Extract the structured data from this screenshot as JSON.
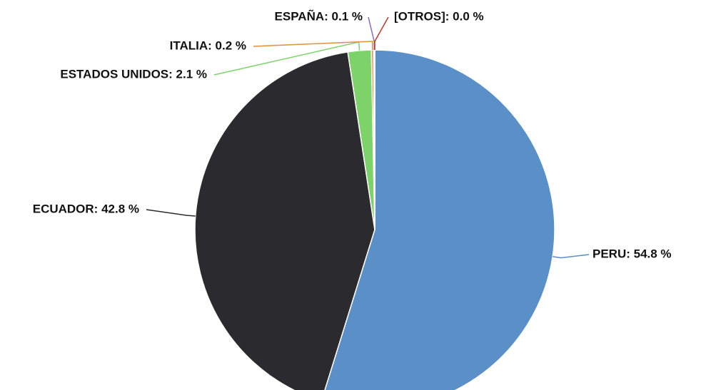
{
  "chart_data": {
    "type": "pie",
    "values": [
      54.8,
      42.8,
      2.1,
      0.2,
      0.1,
      0.0
    ],
    "value_labels": [
      "PERU: 54.8 %",
      "ECUADOR: 42.8 %",
      "ESTADOS UNIDOS: 2.1 %",
      "ITALIA: 0.2 %",
      "ESPAÑA: 0.1 %",
      "[OTROS]: 0.0 %"
    ],
    "colors": [
      "#5a8fc8",
      "#2b2b2f",
      "#7dd36a",
      "#e0903a",
      "#8a6ac8",
      "#c0392b"
    ]
  }
}
